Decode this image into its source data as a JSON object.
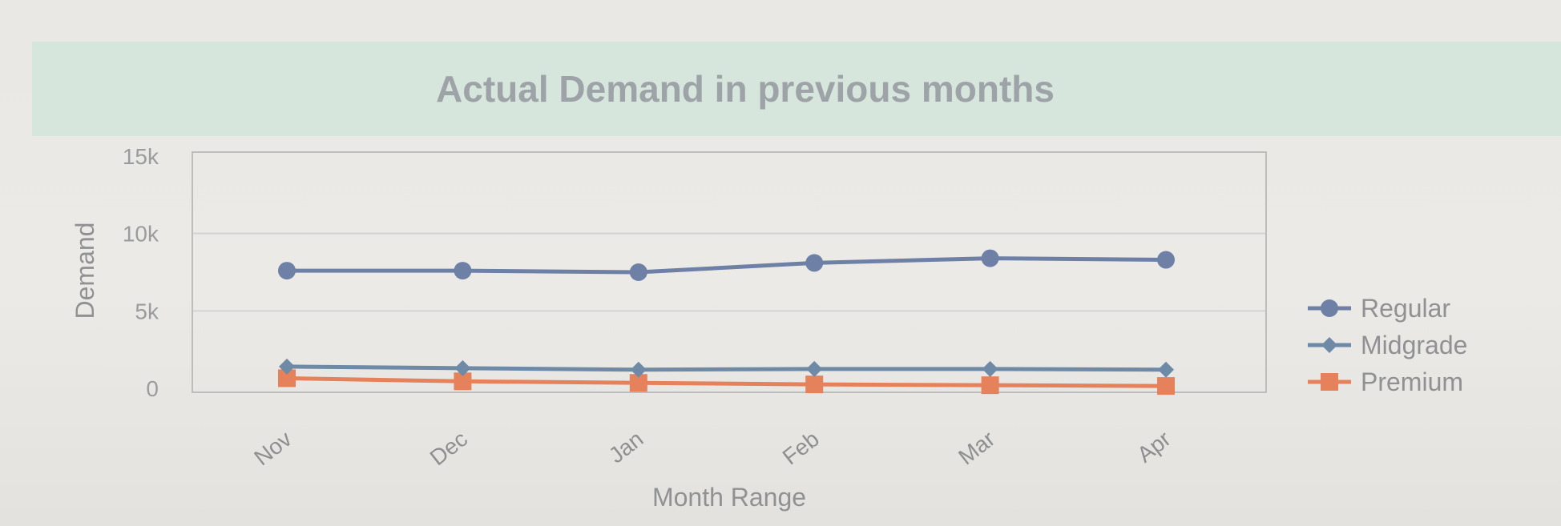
{
  "chart_data": {
    "type": "line",
    "title": "Actual Demand in previous months",
    "xlabel": "Month Range",
    "ylabel": "Demand",
    "categories": [
      "Nov",
      "Dec",
      "Jan",
      "Feb",
      "Mar",
      "Apr"
    ],
    "y_ticks": [
      "0",
      "5k",
      "10k",
      "15k"
    ],
    "ylim": [
      0,
      15000
    ],
    "grid": true,
    "legend_position": "right",
    "series": [
      {
        "name": "Regular",
        "color": "#6f80a6",
        "marker": "circle",
        "values": [
          7600,
          7600,
          7500,
          8100,
          8400,
          8300
        ]
      },
      {
        "name": "Midgrade",
        "color": "#6e8aa6",
        "marker": "diamond",
        "values": [
          1400,
          1300,
          1200,
          1250,
          1250,
          1200
        ]
      },
      {
        "name": "Premium",
        "color": "#e5825c",
        "marker": "square",
        "values": [
          650,
          450,
          350,
          250,
          200,
          150
        ]
      }
    ]
  }
}
